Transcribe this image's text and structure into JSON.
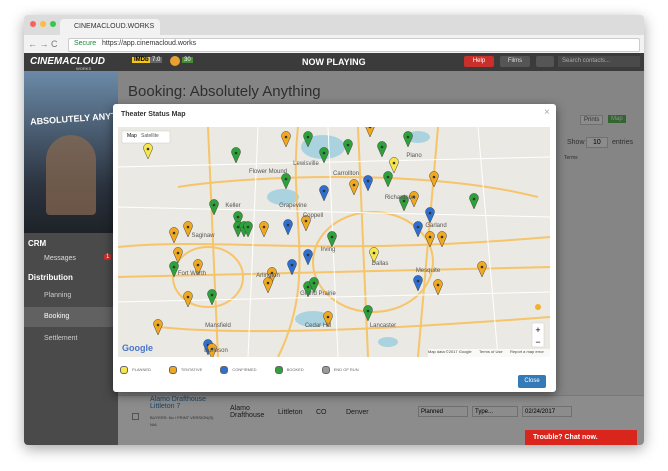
{
  "browser": {
    "tab": "CINEMACLOUD.WORKS",
    "secure": "Secure",
    "url": "https://app.cinemacloud.works"
  },
  "header": {
    "logo": "CINEMACLOUD",
    "logo_sub": "WORKS",
    "imdb": "IMDb",
    "rating": "7.0",
    "score": "30",
    "title": "NOW PLAYING",
    "help": "Help",
    "films": "Films",
    "search": "Search contacts..."
  },
  "sidebar": {
    "poster_title": "ABSOLUTELY ANYTHING",
    "crm": "CRM",
    "messages": "Messages",
    "messages_count": "1",
    "distribution": "Distribution",
    "planning": "Planning",
    "booking": "Booking",
    "settlement": "Settlement"
  },
  "page": {
    "title": "Booking: Absolutely Anything",
    "prints": "Prints",
    "map": "Map",
    "show": "Show",
    "show_count": "10",
    "entries": "entries",
    "column": "Terms"
  },
  "modal": {
    "title": "Theater Status Map",
    "close_x": "×",
    "map_tab": "Map",
    "satellite_tab": "Satellite",
    "cities": [
      "Lewisville",
      "Flower Mound",
      "Carrollton",
      "Plano",
      "Richardson",
      "Garland",
      "Keller",
      "Grapevine",
      "Irving",
      "Dallas",
      "Fort Worth",
      "Arlington",
      "Mesquite",
      "Grand Prairie",
      "Cedar Hill",
      "Lancaster",
      "Mansfield",
      "Burleson",
      "Saginaw",
      "Coppell"
    ],
    "google": "Google",
    "attribution": "Map data ©2017 Google",
    "terms": "Terms of Use",
    "report": "Report a map error",
    "legend": [
      {
        "label": "PLANNED",
        "color": "#f6e64a"
      },
      {
        "label": "TENTATIVE",
        "color": "#f0a820"
      },
      {
        "label": "CONFIRMED",
        "color": "#2f6fd0"
      },
      {
        "label": "BOOKED",
        "color": "#2ea23a"
      },
      {
        "label": "END OF RUN",
        "color": "#9a9a9a"
      }
    ],
    "close": "Close"
  },
  "row": {
    "name": "Alamo Drafthouse Littleton 7",
    "buyers": "BUYERS: No / PRINT VERSION(S)",
    "na": "N/A",
    "circuit": "Alamo Drafthouse",
    "city": "Littleton",
    "state": "CO",
    "market": "Denver",
    "status": "Planned",
    "type": "Type...",
    "date": "02/24/2017"
  },
  "chat": "Trouble? Chat now."
}
